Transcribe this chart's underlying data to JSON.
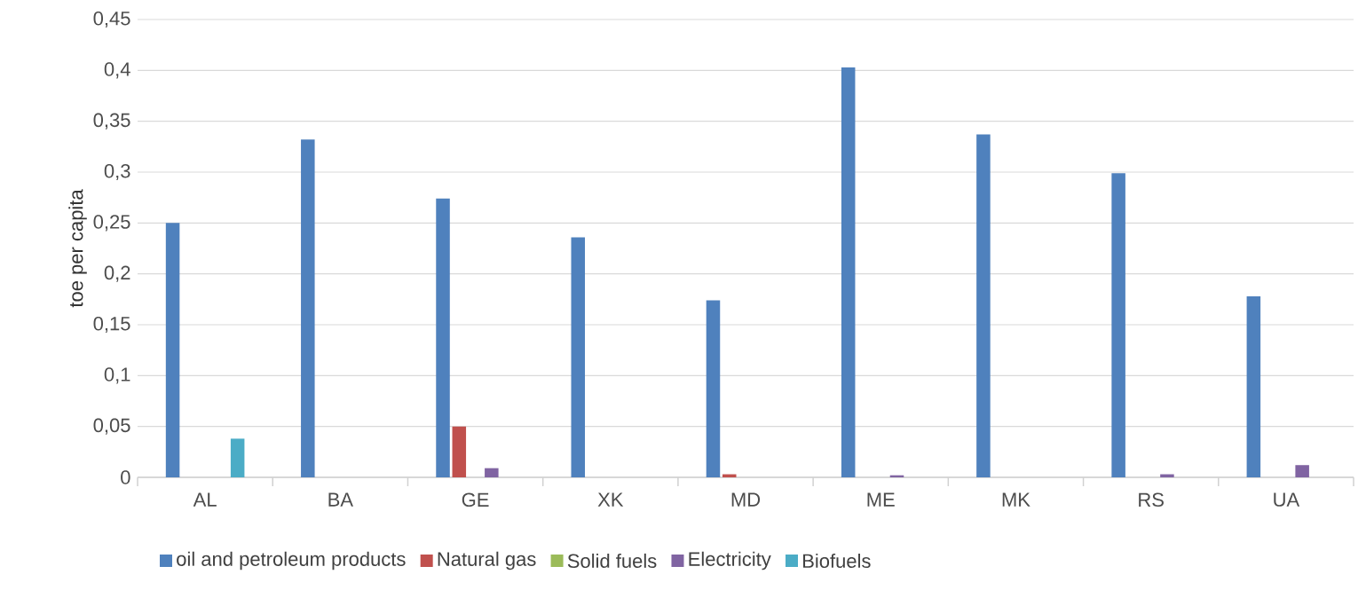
{
  "chart_data": {
    "type": "bar",
    "ylabel": "toe per capita",
    "categories": [
      "AL",
      "BA",
      "GE",
      "XK",
      "MD",
      "ME",
      "MK",
      "RS",
      "UA"
    ],
    "series": [
      {
        "name": "oil and petroleum products",
        "color": "#4f81bd",
        "values": [
          0.25,
          0.332,
          0.274,
          0.236,
          0.174,
          0.403,
          0.337,
          0.299,
          0.178
        ]
      },
      {
        "name": "Natural gas",
        "color": "#c0504d",
        "values": [
          0,
          0,
          0.05,
          0,
          0.003,
          0,
          0,
          0,
          0
        ]
      },
      {
        "name": "Solid fuels",
        "color": "#9bbb59",
        "values": [
          0,
          0,
          0,
          0,
          0,
          0,
          0,
          0,
          0
        ]
      },
      {
        "name": "Electricity",
        "color": "#8064a2",
        "values": [
          0,
          0,
          0.009,
          0,
          0,
          0.002,
          0,
          0.003,
          0.012
        ]
      },
      {
        "name": "Biofuels",
        "color": "#4bacc6",
        "values": [
          0.038,
          0,
          0,
          0,
          0,
          0,
          0,
          0,
          0
        ]
      }
    ],
    "ylim": [
      0,
      0.45
    ],
    "yticks": [
      {
        "value": 0,
        "label": "0"
      },
      {
        "value": 0.05,
        "label": "0,05"
      },
      {
        "value": 0.1,
        "label": "0,1"
      },
      {
        "value": 0.15,
        "label": "0,15"
      },
      {
        "value": 0.2,
        "label": "0,2"
      },
      {
        "value": 0.25,
        "label": "0,25"
      },
      {
        "value": 0.3,
        "label": "0,3"
      },
      {
        "value": 0.35,
        "label": "0,35"
      },
      {
        "value": 0.4,
        "label": "0,4"
      },
      {
        "value": 0.45,
        "label": "0,45"
      }
    ],
    "grid": "y",
    "legend": "bottom"
  }
}
